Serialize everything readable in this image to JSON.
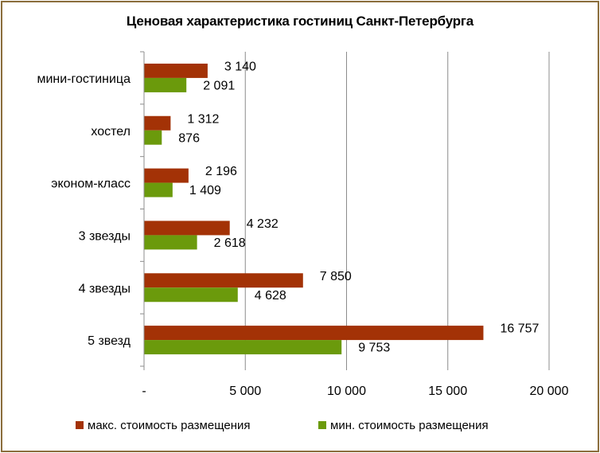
{
  "chart_data": {
    "type": "bar",
    "orientation": "horizontal",
    "title": "Ценовая характеристика гостиниц Санкт-Петербурга",
    "categories": [
      "мини-гостиница",
      "хостел",
      "эконом-класс",
      "3 звезды",
      "4 звезды",
      "5 звезд"
    ],
    "series": [
      {
        "name": "макс. стоимость размещения",
        "color": "#a33206",
        "values": [
          3140,
          1312,
          2196,
          4232,
          7850,
          16757
        ],
        "labels": [
          "3 140",
          "1 312",
          "2 196",
          "4 232",
          "7 850",
          "16 757"
        ]
      },
      {
        "name": "мин. стоимость размещения",
        "color": "#6b9a0c",
        "values": [
          2091,
          876,
          1409,
          2618,
          4628,
          9753
        ],
        "labels": [
          "2 091",
          "876",
          "1 409",
          "2 618",
          "4 628",
          "9 753"
        ]
      }
    ],
    "xlim": [
      0,
      20000
    ],
    "xticks": [
      0,
      5000,
      10000,
      15000,
      20000
    ],
    "xtick_labels": [
      "-",
      "5 000",
      "10 000",
      "15 000",
      "20 000"
    ],
    "grid": true,
    "legend_position": "bottom"
  }
}
